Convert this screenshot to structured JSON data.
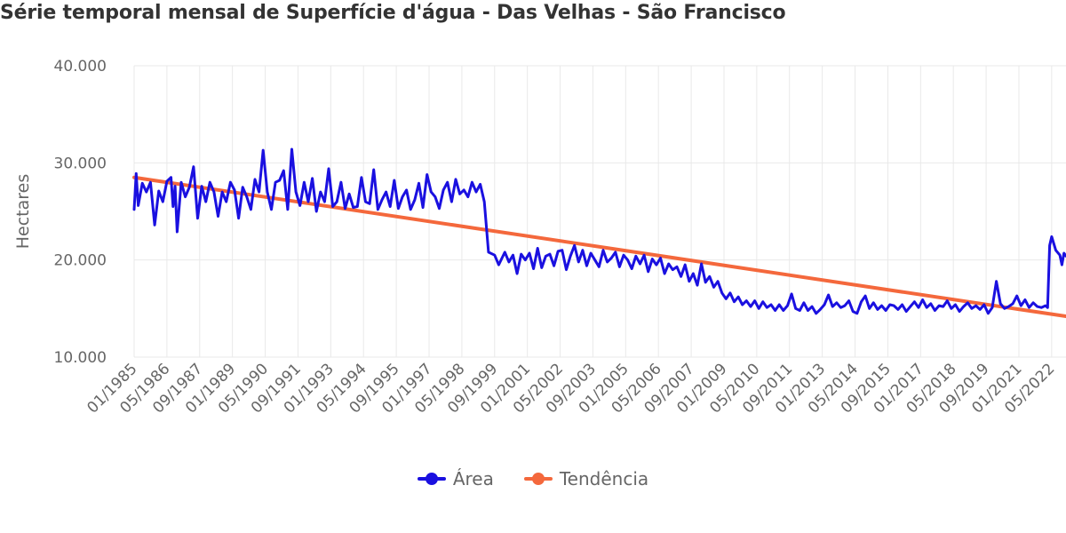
{
  "title": "Série temporal mensal de Superfície d'água - Das Velhas - São Francisco",
  "chart_data": {
    "type": "line",
    "ylabel": "Hectares",
    "ylim": [
      10000,
      40000
    ],
    "y_ticks": [
      10000,
      20000,
      30000,
      40000
    ],
    "y_tick_labels": [
      "10.000",
      "20.000",
      "30.000",
      "40.000"
    ],
    "x_range": [
      "01/1985",
      "12/2022"
    ],
    "x_tick_labels": [
      "01/1985",
      "05/1986",
      "09/1987",
      "01/1989",
      "05/1990",
      "09/1991",
      "01/1993",
      "05/1994",
      "09/1995",
      "01/1997",
      "05/1998",
      "09/1999",
      "01/2001",
      "05/2002",
      "09/2003",
      "01/2005",
      "05/2006",
      "09/2007",
      "01/2009",
      "05/2010",
      "09/2011",
      "01/2013",
      "05/2014",
      "09/2015",
      "01/2017",
      "05/2018",
      "09/2019",
      "01/2021",
      "05/2022"
    ],
    "grid": true,
    "legend_position": "bottom",
    "series": [
      {
        "name": "Área",
        "color": "#1a10e0",
        "anchors": [
          [
            "01/1985",
            25200
          ],
          [
            "02/1985",
            28900
          ],
          [
            "03/1985",
            25600
          ],
          [
            "05/1985",
            27900
          ],
          [
            "07/1985",
            27000
          ],
          [
            "09/1985",
            28000
          ],
          [
            "11/1985",
            23600
          ],
          [
            "01/1986",
            27100
          ],
          [
            "03/1986",
            26000
          ],
          [
            "05/1986",
            28100
          ],
          [
            "07/1986",
            28500
          ],
          [
            "08/1986",
            25500
          ],
          [
            "09/1986",
            27600
          ],
          [
            "10/1986",
            22900
          ],
          [
            "12/1986",
            28000
          ],
          [
            "02/1987",
            26500
          ],
          [
            "04/1987",
            27500
          ],
          [
            "06/1987",
            29600
          ],
          [
            "08/1987",
            24300
          ],
          [
            "10/1987",
            27600
          ],
          [
            "12/1987",
            26000
          ],
          [
            "02/1988",
            28000
          ],
          [
            "04/1988",
            27000
          ],
          [
            "06/1988",
            24500
          ],
          [
            "08/1988",
            27000
          ],
          [
            "10/1988",
            26000
          ],
          [
            "12/1988",
            28000
          ],
          [
            "02/1989",
            27200
          ],
          [
            "04/1989",
            24300
          ],
          [
            "06/1989",
            27500
          ],
          [
            "08/1989",
            26500
          ],
          [
            "10/1989",
            25200
          ],
          [
            "12/1989",
            28300
          ],
          [
            "02/1990",
            27000
          ],
          [
            "04/1990",
            31300
          ],
          [
            "06/1990",
            27000
          ],
          [
            "08/1990",
            25200
          ],
          [
            "10/1990",
            28000
          ],
          [
            "12/1990",
            28200
          ],
          [
            "02/1991",
            29200
          ],
          [
            "04/1991",
            25200
          ],
          [
            "06/1991",
            31400
          ],
          [
            "08/1991",
            27000
          ],
          [
            "10/1991",
            25600
          ],
          [
            "12/1991",
            28000
          ],
          [
            "02/1992",
            26000
          ],
          [
            "04/1992",
            28400
          ],
          [
            "06/1992",
            25000
          ],
          [
            "08/1992",
            27000
          ],
          [
            "10/1992",
            26000
          ],
          [
            "12/1992",
            29400
          ],
          [
            "02/1993",
            25500
          ],
          [
            "04/1993",
            26000
          ],
          [
            "06/1993",
            28000
          ],
          [
            "08/1993",
            25300
          ],
          [
            "10/1993",
            26800
          ],
          [
            "12/1993",
            25400
          ],
          [
            "02/1994",
            25500
          ],
          [
            "04/1994",
            28500
          ],
          [
            "06/1994",
            26000
          ],
          [
            "08/1994",
            25800
          ],
          [
            "10/1994",
            29300
          ],
          [
            "12/1994",
            25200
          ],
          [
            "02/1995",
            26200
          ],
          [
            "04/1995",
            27000
          ],
          [
            "06/1995",
            25500
          ],
          [
            "08/1995",
            28200
          ],
          [
            "10/1995",
            25300
          ],
          [
            "12/1995",
            26500
          ],
          [
            "02/1996",
            27200
          ],
          [
            "04/1996",
            25200
          ],
          [
            "06/1996",
            26200
          ],
          [
            "08/1996",
            27900
          ],
          [
            "10/1996",
            25400
          ],
          [
            "12/1996",
            28800
          ],
          [
            "02/1997",
            27000
          ],
          [
            "04/1997",
            26500
          ],
          [
            "06/1997",
            25300
          ],
          [
            "08/1997",
            27200
          ],
          [
            "10/1997",
            28000
          ],
          [
            "12/1997",
            26000
          ],
          [
            "02/1998",
            28300
          ],
          [
            "04/1998",
            26800
          ],
          [
            "06/1998",
            27200
          ],
          [
            "08/1998",
            26500
          ],
          [
            "10/1998",
            28000
          ],
          [
            "12/1998",
            27000
          ],
          [
            "02/1999",
            27800
          ],
          [
            "04/1999",
            26000
          ],
          [
            "06/1999",
            20800
          ],
          [
            "09/1999",
            20500
          ],
          [
            "11/1999",
            19500
          ],
          [
            "02/2000",
            20800
          ],
          [
            "04/2000",
            19800
          ],
          [
            "06/2000",
            20500
          ],
          [
            "08/2000",
            18600
          ],
          [
            "10/2000",
            20600
          ],
          [
            "12/2000",
            20000
          ],
          [
            "02/2001",
            20700
          ],
          [
            "04/2001",
            19100
          ],
          [
            "06/2001",
            21200
          ],
          [
            "08/2001",
            19200
          ],
          [
            "10/2001",
            20400
          ],
          [
            "12/2001",
            20600
          ],
          [
            "02/2002",
            19400
          ],
          [
            "04/2002",
            20900
          ],
          [
            "06/2002",
            21000
          ],
          [
            "08/2002",
            19000
          ],
          [
            "10/2002",
            20400
          ],
          [
            "12/2002",
            21500
          ],
          [
            "02/2003",
            19800
          ],
          [
            "04/2003",
            21000
          ],
          [
            "06/2003",
            19400
          ],
          [
            "08/2003",
            20700
          ],
          [
            "10/2003",
            20000
          ],
          [
            "12/2003",
            19300
          ],
          [
            "02/2004",
            21000
          ],
          [
            "04/2004",
            19800
          ],
          [
            "06/2004",
            20200
          ],
          [
            "08/2004",
            20800
          ],
          [
            "10/2004",
            19300
          ],
          [
            "12/2004",
            20500
          ],
          [
            "02/2005",
            20000
          ],
          [
            "04/2005",
            19100
          ],
          [
            "06/2005",
            20400
          ],
          [
            "08/2005",
            19600
          ],
          [
            "10/2005",
            20500
          ],
          [
            "12/2005",
            18800
          ],
          [
            "02/2006",
            20100
          ],
          [
            "04/2006",
            19500
          ],
          [
            "06/2006",
            20200
          ],
          [
            "08/2006",
            18600
          ],
          [
            "10/2006",
            19600
          ],
          [
            "12/2006",
            19000
          ],
          [
            "02/2007",
            19300
          ],
          [
            "04/2007",
            18300
          ],
          [
            "06/2007",
            19500
          ],
          [
            "08/2007",
            17800
          ],
          [
            "10/2007",
            18600
          ],
          [
            "12/2007",
            17400
          ],
          [
            "02/2008",
            19600
          ],
          [
            "04/2008",
            17700
          ],
          [
            "06/2008",
            18300
          ],
          [
            "08/2008",
            17200
          ],
          [
            "10/2008",
            17800
          ],
          [
            "12/2008",
            16600
          ],
          [
            "02/2009",
            16000
          ],
          [
            "04/2009",
            16600
          ],
          [
            "06/2009",
            15700
          ],
          [
            "08/2009",
            16200
          ],
          [
            "10/2009",
            15400
          ],
          [
            "12/2009",
            15800
          ],
          [
            "02/2010",
            15200
          ],
          [
            "04/2010",
            15800
          ],
          [
            "06/2010",
            15000
          ],
          [
            "08/2010",
            15700
          ],
          [
            "10/2010",
            15100
          ],
          [
            "12/2010",
            15400
          ],
          [
            "02/2011",
            14800
          ],
          [
            "04/2011",
            15400
          ],
          [
            "06/2011",
            14800
          ],
          [
            "08/2011",
            15300
          ],
          [
            "10/2011",
            16500
          ],
          [
            "12/2011",
            15000
          ],
          [
            "02/2012",
            14800
          ],
          [
            "04/2012",
            15600
          ],
          [
            "06/2012",
            14800
          ],
          [
            "08/2012",
            15200
          ],
          [
            "10/2012",
            14500
          ],
          [
            "12/2012",
            14900
          ],
          [
            "02/2013",
            15400
          ],
          [
            "04/2013",
            16400
          ],
          [
            "06/2013",
            15200
          ],
          [
            "08/2013",
            15600
          ],
          [
            "10/2013",
            15100
          ],
          [
            "12/2013",
            15300
          ],
          [
            "02/2014",
            15800
          ],
          [
            "04/2014",
            14700
          ],
          [
            "06/2014",
            14500
          ],
          [
            "08/2014",
            15700
          ],
          [
            "10/2014",
            16300
          ],
          [
            "12/2014",
            15000
          ],
          [
            "02/2015",
            15600
          ],
          [
            "04/2015",
            14900
          ],
          [
            "06/2015",
            15300
          ],
          [
            "08/2015",
            14800
          ],
          [
            "10/2015",
            15400
          ],
          [
            "12/2015",
            15300
          ],
          [
            "02/2016",
            14900
          ],
          [
            "04/2016",
            15400
          ],
          [
            "06/2016",
            14700
          ],
          [
            "08/2016",
            15200
          ],
          [
            "10/2016",
            15700
          ],
          [
            "12/2016",
            15100
          ],
          [
            "02/2017",
            15900
          ],
          [
            "04/2017",
            15100
          ],
          [
            "06/2017",
            15500
          ],
          [
            "08/2017",
            14800
          ],
          [
            "10/2017",
            15300
          ],
          [
            "12/2017",
            15200
          ],
          [
            "02/2018",
            15800
          ],
          [
            "04/2018",
            15000
          ],
          [
            "06/2018",
            15400
          ],
          [
            "08/2018",
            14700
          ],
          [
            "10/2018",
            15200
          ],
          [
            "12/2018",
            15600
          ],
          [
            "02/2019",
            15000
          ],
          [
            "04/2019",
            15300
          ],
          [
            "06/2019",
            14900
          ],
          [
            "08/2019",
            15400
          ],
          [
            "10/2019",
            14500
          ],
          [
            "12/2019",
            15100
          ],
          [
            "02/2020",
            17800
          ],
          [
            "04/2020",
            15500
          ],
          [
            "06/2020",
            15000
          ],
          [
            "08/2020",
            15200
          ],
          [
            "10/2020",
            15500
          ],
          [
            "12/2020",
            16300
          ],
          [
            "02/2021",
            15300
          ],
          [
            "04/2021",
            15900
          ],
          [
            "06/2021",
            15100
          ],
          [
            "08/2021",
            15600
          ],
          [
            "10/2021",
            15200
          ],
          [
            "12/2021",
            15100
          ],
          [
            "02/2022",
            15300
          ],
          [
            "03/2022",
            15100
          ],
          [
            "04/2022",
            21500
          ],
          [
            "05/2022",
            22400
          ],
          [
            "07/2022",
            21000
          ],
          [
            "09/2022",
            20500
          ],
          [
            "10/2022",
            19500
          ],
          [
            "11/2022",
            20700
          ],
          [
            "12/2022",
            20400
          ]
        ]
      },
      {
        "name": "Tendência",
        "color": "#f4683c",
        "start": [
          "01/1985",
          28500
        ],
        "end": [
          "12/2022",
          14200
        ]
      }
    ]
  }
}
